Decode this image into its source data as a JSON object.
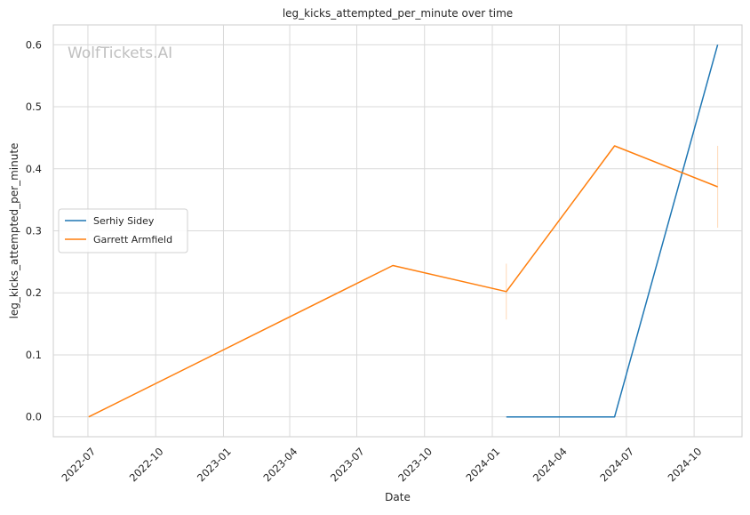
{
  "chart_data": {
    "type": "line",
    "title": "leg_kicks_attempted_per_minute over time",
    "xlabel": "Date",
    "ylabel": "leg_kicks_attempted_per_minute",
    "watermark": "WolfTickets.AI",
    "x_ticks": [
      "2022-07",
      "2022-10",
      "2023-01",
      "2023-04",
      "2023-07",
      "2023-10",
      "2024-01",
      "2024-04",
      "2024-07",
      "2024-10"
    ],
    "y_ticks": [
      "0.0",
      "0.1",
      "0.2",
      "0.3",
      "0.4",
      "0.5",
      "0.6"
    ],
    "xlim": [
      "2022-05-15",
      "2024-12-05"
    ],
    "ylim": [
      -0.032,
      0.632
    ],
    "grid": true,
    "legend_position": "center-left",
    "series": [
      {
        "name": "Serhiy Sidey",
        "color": "#1f77b4",
        "x": [
          "2024-01-20",
          "2024-06-15",
          "2024-11-02"
        ],
        "y": [
          0.0,
          0.0,
          0.6
        ],
        "error_bars": []
      },
      {
        "name": "Garrett Armfield",
        "color": "#ff7f0e",
        "x": [
          "2022-07-02",
          "2023-08-19",
          "2024-01-20",
          "2024-06-15",
          "2024-11-02"
        ],
        "y": [
          0.0,
          0.244,
          0.202,
          0.437,
          0.371
        ],
        "error_bars": [
          {
            "x": "2024-01-20",
            "low": 0.157,
            "high": 0.247
          },
          {
            "x": "2024-11-02",
            "low": 0.305,
            "high": 0.437
          }
        ]
      }
    ]
  }
}
